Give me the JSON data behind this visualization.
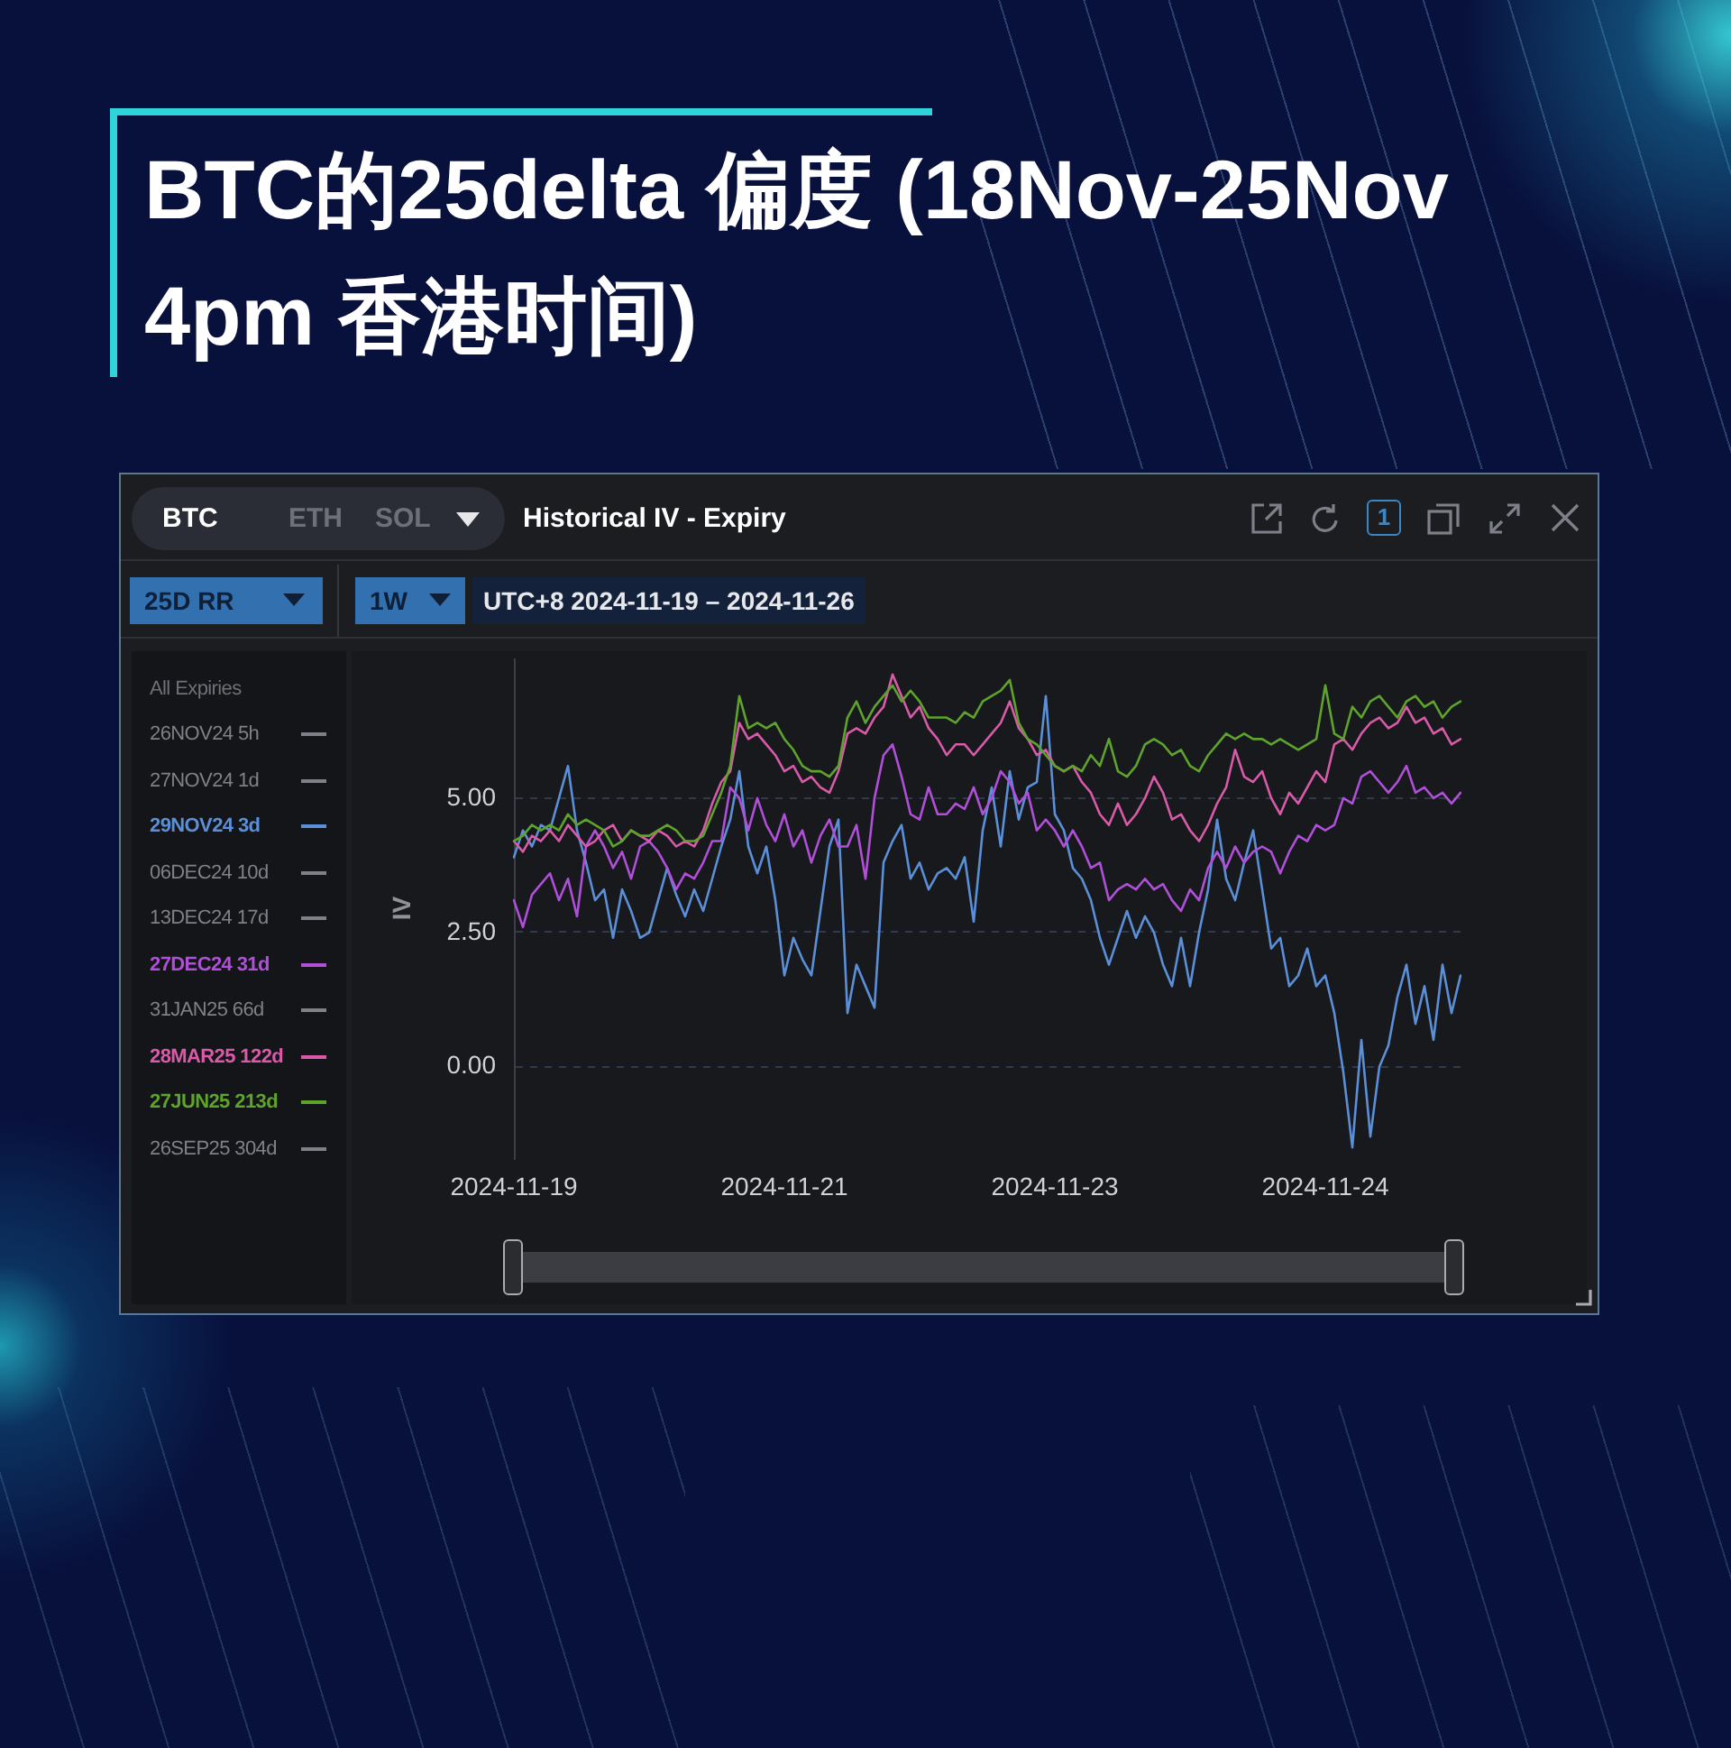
{
  "chart_data": {
    "type": "line",
    "title": "BTC的25delta 偏度 (18Nov-25Nov 4pm 香港时间)",
    "subtitle": "Historical IV - Expiry",
    "ylabel": "IV",
    "legend_title": "All Expiries",
    "annotations": [
      "BTC",
      "ETH",
      "SOL",
      "25D RR",
      "1W",
      "UTC+8 2024-11-19 – 2024-11-26",
      "1"
    ],
    "categories": [
      "2024-11-19",
      null,
      null,
      null,
      null,
      null,
      null,
      null,
      null,
      null,
      null,
      null,
      null,
      null,
      null,
      null,
      null,
      null,
      null,
      null,
      null,
      null,
      null,
      null,
      null,
      null,
      null,
      null,
      null,
      null,
      "2024-11-21",
      null,
      null,
      null,
      null,
      null,
      null,
      null,
      null,
      null,
      null,
      null,
      null,
      null,
      null,
      null,
      null,
      null,
      null,
      null,
      null,
      null,
      null,
      null,
      null,
      null,
      null,
      null,
      null,
      null,
      "2024-11-23",
      null,
      null,
      null,
      null,
      null,
      null,
      null,
      null,
      null,
      null,
      null,
      null,
      null,
      null,
      null,
      null,
      null,
      null,
      null,
      null,
      null,
      null,
      null,
      null,
      null,
      null,
      null,
      null,
      null,
      "2024-11-24",
      null,
      null,
      null,
      null,
      null,
      null,
      null,
      null,
      null,
      null,
      null,
      null,
      null,
      null,
      null
    ],
    "series": [
      {
        "name": "26NOV24 5h",
        "color": "#7e8188",
        "values": [
          null,
          null,
          null,
          null,
          null,
          null,
          null,
          null,
          null,
          null,
          null,
          null,
          null,
          null,
          null,
          null,
          null,
          null,
          null,
          null,
          null,
          null,
          null,
          null,
          null,
          null,
          null,
          null,
          null,
          null,
          null,
          null,
          null,
          null,
          null,
          null,
          null,
          null,
          null,
          null,
          null,
          null,
          null,
          null,
          null,
          null,
          null,
          null,
          null,
          null,
          null,
          null,
          null,
          null,
          null,
          null,
          null,
          null,
          null,
          null,
          null,
          null,
          null,
          null,
          null,
          null,
          null,
          null,
          null,
          null,
          null,
          null,
          null,
          null,
          null,
          null,
          null,
          null,
          null,
          null,
          null,
          null,
          null,
          null,
          null,
          null,
          null,
          null,
          null,
          null,
          null,
          null,
          null,
          null,
          null,
          null,
          null,
          null,
          null,
          null,
          null,
          null,
          null,
          null,
          null,
          null
        ]
      },
      {
        "name": "27NOV24 1d",
        "color": "#7e8188",
        "values": [
          null,
          null,
          null,
          null,
          null,
          null,
          null,
          null,
          null,
          null,
          null,
          null,
          null,
          null,
          null,
          null,
          null,
          null,
          null,
          null,
          null,
          null,
          null,
          null,
          null,
          null,
          null,
          null,
          null,
          null,
          null,
          null,
          null,
          null,
          null,
          null,
          null,
          null,
          null,
          null,
          null,
          null,
          null,
          null,
          null,
          null,
          null,
          null,
          null,
          null,
          null,
          null,
          null,
          null,
          null,
          null,
          null,
          null,
          null,
          null,
          null,
          null,
          null,
          null,
          null,
          null,
          null,
          null,
          null,
          null,
          null,
          null,
          null,
          null,
          null,
          null,
          null,
          null,
          null,
          null,
          null,
          null,
          null,
          null,
          null,
          null,
          null,
          null,
          null,
          null,
          null,
          null,
          null,
          null,
          null,
          null,
          null,
          null,
          null,
          null,
          null,
          null,
          null,
          null,
          null,
          null
        ]
      },
      {
        "name": "29NOV24 3d",
        "color": "#5b8fd8",
        "values": [
          3.9,
          4.4,
          4.1,
          4.5,
          4.4,
          5.0,
          5.6,
          4.4,
          3.8,
          3.1,
          3.3,
          2.4,
          3.3,
          2.9,
          2.4,
          2.5,
          3.1,
          3.7,
          3.2,
          2.8,
          3.3,
          2.9,
          3.5,
          4.1,
          4.6,
          5.5,
          4.1,
          3.6,
          4.1,
          3.1,
          1.7,
          2.4,
          2.0,
          1.7,
          2.9,
          4.1,
          4.6,
          1.0,
          1.9,
          1.5,
          1.1,
          3.8,
          4.2,
          4.5,
          3.5,
          3.8,
          3.3,
          3.6,
          3.7,
          3.5,
          3.9,
          2.7,
          4.4,
          5.2,
          4.1,
          5.5,
          4.6,
          5.2,
          5.3,
          6.9,
          4.7,
          4.4,
          3.7,
          3.5,
          3.1,
          2.4,
          1.9,
          2.4,
          2.9,
          2.4,
          2.8,
          2.5,
          1.9,
          1.5,
          2.4,
          1.5,
          2.5,
          3.3,
          4.6,
          3.5,
          3.1,
          3.8,
          4.4,
          3.3,
          2.2,
          2.4,
          1.5,
          1.7,
          2.2,
          1.5,
          1.7,
          1.0,
          -0.1,
          -1.5,
          0.5,
          -1.3,
          0.0,
          0.4,
          1.3,
          1.9,
          0.8,
          1.5,
          0.5,
          1.9,
          1.0,
          1.7
        ]
      },
      {
        "name": "06DEC24 10d",
        "color": "#7e8188",
        "values": [
          null,
          null,
          null,
          null,
          null,
          null,
          null,
          null,
          null,
          null,
          null,
          null,
          null,
          null,
          null,
          null,
          null,
          null,
          null,
          null,
          null,
          null,
          null,
          null,
          null,
          null,
          null,
          null,
          null,
          null,
          null,
          null,
          null,
          null,
          null,
          null,
          null,
          null,
          null,
          null,
          null,
          null,
          null,
          null,
          null,
          null,
          null,
          null,
          null,
          null,
          null,
          null,
          null,
          null,
          null,
          null,
          null,
          null,
          null,
          null,
          null,
          null,
          null,
          null,
          null,
          null,
          null,
          null,
          null,
          null,
          null,
          null,
          null,
          null,
          null,
          null,
          null,
          null,
          null,
          null,
          null,
          null,
          null,
          null,
          null,
          null,
          null,
          null,
          null,
          null,
          null,
          null,
          null,
          null,
          null,
          null,
          null,
          null,
          null,
          null,
          null,
          null,
          null,
          null,
          null,
          null
        ]
      },
      {
        "name": "13DEC24 17d",
        "color": "#7e8188",
        "values": [
          null,
          null,
          null,
          null,
          null,
          null,
          null,
          null,
          null,
          null,
          null,
          null,
          null,
          null,
          null,
          null,
          null,
          null,
          null,
          null,
          null,
          null,
          null,
          null,
          null,
          null,
          null,
          null,
          null,
          null,
          null,
          null,
          null,
          null,
          null,
          null,
          null,
          null,
          null,
          null,
          null,
          null,
          null,
          null,
          null,
          null,
          null,
          null,
          null,
          null,
          null,
          null,
          null,
          null,
          null,
          null,
          null,
          null,
          null,
          null,
          null,
          null,
          null,
          null,
          null,
          null,
          null,
          null,
          null,
          null,
          null,
          null,
          null,
          null,
          null,
          null,
          null,
          null,
          null,
          null,
          null,
          null,
          null,
          null,
          null,
          null,
          null,
          null,
          null,
          null,
          null,
          null,
          null,
          null,
          null,
          null,
          null,
          null,
          null,
          null,
          null,
          null,
          null,
          null,
          null,
          null
        ]
      },
      {
        "name": "27DEC24 31d",
        "color": "#b04fd8",
        "values": [
          3.1,
          2.6,
          3.2,
          3.4,
          3.6,
          3.1,
          3.5,
          2.8,
          4.1,
          4.4,
          4.1,
          3.7,
          4.0,
          3.5,
          4.1,
          4.2,
          4.0,
          3.7,
          3.3,
          3.6,
          3.5,
          3.8,
          4.2,
          4.2,
          5.2,
          5.0,
          4.4,
          5.0,
          4.5,
          4.2,
          4.7,
          4.1,
          4.4,
          3.8,
          4.3,
          4.6,
          4.1,
          4.1,
          4.5,
          3.5,
          5.0,
          5.8,
          6.0,
          5.4,
          4.7,
          4.6,
          5.2,
          4.7,
          4.7,
          4.9,
          4.8,
          5.2,
          4.7,
          5.0,
          5.5,
          5.3,
          4.9,
          5.1,
          4.4,
          4.6,
          4.4,
          4.1,
          4.4,
          4.1,
          3.7,
          3.8,
          3.1,
          3.3,
          3.4,
          3.3,
          3.5,
          3.3,
          3.4,
          3.1,
          2.9,
          3.3,
          3.1,
          3.7,
          4.0,
          3.7,
          4.1,
          3.8,
          4.0,
          4.1,
          4.0,
          3.6,
          4.0,
          4.3,
          4.2,
          4.5,
          4.4,
          4.5,
          5.0,
          4.9,
          5.4,
          5.5,
          5.3,
          5.1,
          5.3,
          5.6,
          5.1,
          5.2,
          5.0,
          5.1,
          4.9,
          5.1
        ]
      },
      {
        "name": "31JAN25 66d",
        "color": "#7e8188",
        "values": [
          null,
          null,
          null,
          null,
          null,
          null,
          null,
          null,
          null,
          null,
          null,
          null,
          null,
          null,
          null,
          null,
          null,
          null,
          null,
          null,
          null,
          null,
          null,
          null,
          null,
          null,
          null,
          null,
          null,
          null,
          null,
          null,
          null,
          null,
          null,
          null,
          null,
          null,
          null,
          null,
          null,
          null,
          null,
          null,
          null,
          null,
          null,
          null,
          null,
          null,
          null,
          null,
          null,
          null,
          null,
          null,
          null,
          null,
          null,
          null,
          null,
          null,
          null,
          null,
          null,
          null,
          null,
          null,
          null,
          null,
          null,
          null,
          null,
          null,
          null,
          null,
          null,
          null,
          null,
          null,
          null,
          null,
          null,
          null,
          null,
          null,
          null,
          null,
          null,
          null,
          null,
          null,
          null,
          null,
          null,
          null,
          null,
          null,
          null,
          null,
          null,
          null,
          null,
          null,
          null,
          null
        ]
      },
      {
        "name": "28MAR25 122d",
        "color": "#d95aa8",
        "values": [
          4.2,
          4.0,
          4.3,
          4.2,
          4.4,
          4.2,
          4.5,
          4.3,
          4.1,
          4.2,
          4.4,
          4.5,
          4.2,
          4.4,
          4.3,
          4.2,
          4.4,
          4.3,
          4.1,
          4.2,
          4.1,
          4.4,
          4.9,
          5.3,
          5.5,
          6.4,
          6.1,
          6.2,
          6.0,
          5.8,
          5.5,
          5.6,
          5.3,
          5.4,
          5.2,
          5.1,
          5.5,
          6.2,
          6.3,
          6.2,
          6.5,
          6.7,
          7.3,
          6.9,
          6.5,
          6.7,
          6.3,
          6.1,
          5.8,
          6.0,
          6.0,
          5.8,
          6.0,
          6.2,
          6.4,
          6.8,
          6.3,
          6.1,
          5.8,
          5.9,
          5.6,
          5.5,
          5.6,
          5.3,
          5.1,
          4.7,
          4.5,
          4.9,
          4.5,
          4.7,
          5.0,
          5.4,
          5.1,
          4.6,
          4.7,
          4.4,
          4.2,
          4.5,
          4.9,
          5.2,
          5.9,
          5.4,
          5.3,
          5.5,
          5.0,
          4.7,
          5.1,
          4.9,
          5.2,
          5.5,
          5.3,
          6.0,
          6.1,
          5.9,
          6.2,
          6.4,
          6.5,
          6.3,
          6.4,
          6.7,
          6.4,
          6.5,
          6.2,
          6.3,
          6.0,
          6.1
        ]
      },
      {
        "name": "27JUN25 213d",
        "color": "#5ea32c",
        "values": [
          4.2,
          4.3,
          4.5,
          4.4,
          4.5,
          4.4,
          4.7,
          4.5,
          4.6,
          4.5,
          4.4,
          4.1,
          4.2,
          4.4,
          4.3,
          4.3,
          4.4,
          4.5,
          4.4,
          4.2,
          4.2,
          4.3,
          4.7,
          5.1,
          5.6,
          6.9,
          6.3,
          6.4,
          6.3,
          6.4,
          6.1,
          5.9,
          5.6,
          5.5,
          5.5,
          5.4,
          5.6,
          6.5,
          6.8,
          6.4,
          6.7,
          6.9,
          7.1,
          6.8,
          7.0,
          6.8,
          6.5,
          6.5,
          6.5,
          6.4,
          6.6,
          6.5,
          6.8,
          6.9,
          7.0,
          7.2,
          6.4,
          6.1,
          6.0,
          5.8,
          5.6,
          5.5,
          5.6,
          5.5,
          5.8,
          5.6,
          6.1,
          5.5,
          5.4,
          5.6,
          6.0,
          6.1,
          6.0,
          5.8,
          5.9,
          5.6,
          5.5,
          5.8,
          6.0,
          6.2,
          6.1,
          6.2,
          6.1,
          6.1,
          6.0,
          6.1,
          6.0,
          5.9,
          6.0,
          6.1,
          7.1,
          6.2,
          6.1,
          6.7,
          6.5,
          6.8,
          6.9,
          6.7,
          6.5,
          6.8,
          6.9,
          6.7,
          6.8,
          6.5,
          6.7,
          6.8
        ]
      },
      {
        "name": "26SEP25 304d",
        "color": "#7e8188",
        "values": [
          null,
          null,
          null,
          null,
          null,
          null,
          null,
          null,
          null,
          null,
          null,
          null,
          null,
          null,
          null,
          null,
          null,
          null,
          null,
          null,
          null,
          null,
          null,
          null,
          null,
          null,
          null,
          null,
          null,
          null,
          null,
          null,
          null,
          null,
          null,
          null,
          null,
          null,
          null,
          null,
          null,
          null,
          null,
          null,
          null,
          null,
          null,
          null,
          null,
          null,
          null,
          null,
          null,
          null,
          null,
          null,
          null,
          null,
          null,
          null,
          null,
          null,
          null,
          null,
          null,
          null,
          null,
          null,
          null,
          null,
          null,
          null,
          null,
          null,
          null,
          null,
          null,
          null,
          null,
          null,
          null,
          null,
          null,
          null,
          null,
          null,
          null,
          null,
          null,
          null,
          null,
          null,
          null,
          null,
          null,
          null,
          null,
          null,
          null,
          null,
          null,
          null,
          null,
          null,
          null,
          null
        ]
      }
    ],
    "ylim": [
      -1.7,
      7.6
    ],
    "yticks": [
      {
        "value": 0,
        "label": "0.00"
      },
      {
        "value": 2.5,
        "label": "2.50"
      },
      {
        "value": 5,
        "label": "5.00"
      }
    ],
    "grid": "y",
    "legend": "left",
    "marker": "none"
  }
}
